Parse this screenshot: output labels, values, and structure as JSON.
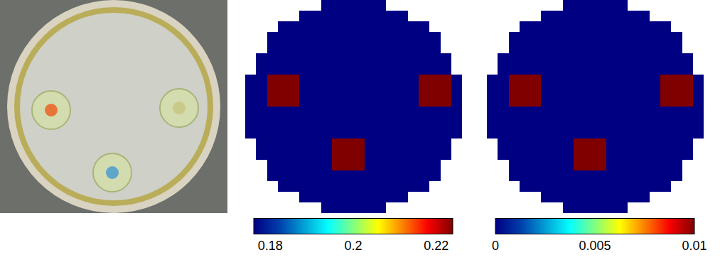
{
  "chart_data": [
    {
      "type": "heatmap",
      "tick_labels": false,
      "colorbar_range": [
        0.176,
        0.224
      ],
      "colorbar_ticks": [
        0.18,
        0.2,
        0.22
      ],
      "cells": [
        [
          null,
          null,
          null,
          null,
          null,
          null,
          null,
          0.176,
          0.176,
          0.176,
          0.176,
          0.176,
          0.176,
          null,
          null,
          null,
          null,
          null,
          null,
          null
        ],
        [
          null,
          null,
          null,
          null,
          null,
          0.176,
          0.176,
          0.176,
          0.176,
          0.176,
          0.176,
          0.176,
          0.176,
          0.176,
          0.176,
          null,
          null,
          null,
          null,
          null
        ],
        [
          null,
          null,
          null,
          0.176,
          0.176,
          0.176,
          0.176,
          0.176,
          0.176,
          0.176,
          0.176,
          0.176,
          0.176,
          0.176,
          0.176,
          0.176,
          0.176,
          null,
          null,
          null
        ],
        [
          null,
          null,
          0.176,
          0.176,
          0.176,
          0.176,
          0.176,
          0.176,
          0.176,
          0.176,
          0.176,
          0.176,
          0.176,
          0.176,
          0.176,
          0.176,
          0.176,
          0.176,
          null,
          null
        ],
        [
          null,
          null,
          0.176,
          0.176,
          0.176,
          0.176,
          0.176,
          0.176,
          0.176,
          0.176,
          0.176,
          0.176,
          0.176,
          0.176,
          0.176,
          0.176,
          0.176,
          0.176,
          null,
          null
        ],
        [
          null,
          0.176,
          0.176,
          0.176,
          0.176,
          0.176,
          0.176,
          0.176,
          0.176,
          0.176,
          0.176,
          0.176,
          0.176,
          0.176,
          0.176,
          0.176,
          0.176,
          0.176,
          0.176,
          null
        ],
        [
          null,
          0.176,
          0.176,
          0.176,
          0.176,
          0.176,
          0.176,
          0.176,
          0.176,
          0.176,
          0.176,
          0.176,
          0.176,
          0.176,
          0.176,
          0.176,
          0.176,
          0.176,
          0.176,
          null
        ],
        [
          0.176,
          0.176,
          0.224,
          0.224,
          0.224,
          0.176,
          0.176,
          0.176,
          0.176,
          0.176,
          0.176,
          0.176,
          0.176,
          0.176,
          0.176,
          0.176,
          0.224,
          0.224,
          0.224,
          0.176
        ],
        [
          0.176,
          0.176,
          0.224,
          0.224,
          0.224,
          0.176,
          0.176,
          0.176,
          0.176,
          0.176,
          0.176,
          0.176,
          0.176,
          0.176,
          0.176,
          0.176,
          0.224,
          0.224,
          0.224,
          0.176
        ],
        [
          0.176,
          0.176,
          0.224,
          0.224,
          0.224,
          0.176,
          0.176,
          0.176,
          0.176,
          0.176,
          0.176,
          0.176,
          0.176,
          0.176,
          0.176,
          0.176,
          0.224,
          0.224,
          0.224,
          0.176
        ],
        [
          0.176,
          0.176,
          0.176,
          0.176,
          0.176,
          0.176,
          0.176,
          0.176,
          0.176,
          0.176,
          0.176,
          0.176,
          0.176,
          0.176,
          0.176,
          0.176,
          0.176,
          0.176,
          0.176,
          0.176
        ],
        [
          0.176,
          0.176,
          0.176,
          0.176,
          0.176,
          0.176,
          0.176,
          0.176,
          0.176,
          0.176,
          0.176,
          0.176,
          0.176,
          0.176,
          0.176,
          0.176,
          0.176,
          0.176,
          0.176,
          0.176
        ],
        [
          0.176,
          0.176,
          0.176,
          0.176,
          0.176,
          0.176,
          0.176,
          0.176,
          0.176,
          0.176,
          0.176,
          0.176,
          0.176,
          0.176,
          0.176,
          0.176,
          0.176,
          0.176,
          0.176,
          0.176
        ],
        [
          null,
          0.176,
          0.176,
          0.176,
          0.176,
          0.176,
          0.176,
          0.176,
          0.224,
          0.224,
          0.224,
          0.176,
          0.176,
          0.176,
          0.176,
          0.176,
          0.176,
          0.176,
          0.176,
          null
        ],
        [
          null,
          0.176,
          0.176,
          0.176,
          0.176,
          0.176,
          0.176,
          0.176,
          0.224,
          0.224,
          0.224,
          0.176,
          0.176,
          0.176,
          0.176,
          0.176,
          0.176,
          0.176,
          0.176,
          null
        ],
        [
          null,
          null,
          0.176,
          0.176,
          0.176,
          0.176,
          0.176,
          0.176,
          0.224,
          0.224,
          0.224,
          0.176,
          0.176,
          0.176,
          0.176,
          0.176,
          0.176,
          0.176,
          null,
          null
        ],
        [
          null,
          null,
          0.176,
          0.176,
          0.176,
          0.176,
          0.176,
          0.176,
          0.176,
          0.176,
          0.176,
          0.176,
          0.176,
          0.176,
          0.176,
          0.176,
          0.176,
          0.176,
          null,
          null
        ],
        [
          null,
          null,
          null,
          0.176,
          0.176,
          0.176,
          0.176,
          0.176,
          0.176,
          0.176,
          0.176,
          0.176,
          0.176,
          0.176,
          0.176,
          0.176,
          0.176,
          null,
          null,
          null
        ],
        [
          null,
          null,
          null,
          null,
          null,
          0.176,
          0.176,
          0.176,
          0.176,
          0.176,
          0.176,
          0.176,
          0.176,
          0.176,
          0.176,
          null,
          null,
          null,
          null,
          null
        ],
        [
          null,
          null,
          null,
          null,
          null,
          null,
          null,
          0.176,
          0.176,
          0.176,
          0.176,
          0.176,
          0.176,
          null,
          null,
          null,
          null,
          null,
          null,
          null
        ]
      ]
    },
    {
      "type": "heatmap",
      "tick_labels": false,
      "colorbar_range": [
        0,
        0.01
      ],
      "colorbar_ticks": [
        0,
        0.005,
        0.01
      ],
      "cells": [
        [
          null,
          null,
          null,
          null,
          null,
          null,
          null,
          0,
          0,
          0,
          0,
          0,
          0,
          null,
          null,
          null,
          null,
          null,
          null,
          null
        ],
        [
          null,
          null,
          null,
          null,
          null,
          0,
          0,
          0,
          0,
          0,
          0,
          0,
          0,
          0,
          0,
          null,
          null,
          null,
          null,
          null
        ],
        [
          null,
          null,
          null,
          0,
          0,
          0,
          0,
          0,
          0,
          0,
          0,
          0,
          0,
          0,
          0,
          0,
          0,
          null,
          null,
          null
        ],
        [
          null,
          null,
          0,
          0,
          0,
          0,
          0,
          0,
          0,
          0,
          0,
          0,
          0,
          0,
          0,
          0,
          0,
          0,
          null,
          null
        ],
        [
          null,
          null,
          0,
          0,
          0,
          0,
          0,
          0,
          0,
          0,
          0,
          0,
          0,
          0,
          0,
          0,
          0,
          0,
          null,
          null
        ],
        [
          null,
          0,
          0,
          0,
          0,
          0,
          0,
          0,
          0,
          0,
          0,
          0,
          0,
          0,
          0,
          0,
          0,
          0,
          0,
          null
        ],
        [
          null,
          0,
          0,
          0,
          0,
          0,
          0,
          0,
          0,
          0,
          0,
          0,
          0,
          0,
          0,
          0,
          0,
          0,
          0,
          null
        ],
        [
          0,
          0,
          0.01,
          0.01,
          0.01,
          0,
          0,
          0,
          0,
          0,
          0,
          0,
          0,
          0,
          0,
          0,
          0.01,
          0.01,
          0.01,
          0
        ],
        [
          0,
          0,
          0.01,
          0.01,
          0.01,
          0,
          0,
          0,
          0,
          0,
          0,
          0,
          0,
          0,
          0,
          0,
          0.01,
          0.01,
          0.01,
          0
        ],
        [
          0,
          0,
          0.01,
          0.01,
          0.01,
          0,
          0,
          0,
          0,
          0,
          0,
          0,
          0,
          0,
          0,
          0,
          0.01,
          0.01,
          0.01,
          0
        ],
        [
          0,
          0,
          0,
          0,
          0,
          0,
          0,
          0,
          0,
          0,
          0,
          0,
          0,
          0,
          0,
          0,
          0,
          0,
          0,
          0
        ],
        [
          0,
          0,
          0,
          0,
          0,
          0,
          0,
          0,
          0,
          0,
          0,
          0,
          0,
          0,
          0,
          0,
          0,
          0,
          0,
          0
        ],
        [
          0,
          0,
          0,
          0,
          0,
          0,
          0,
          0,
          0,
          0,
          0,
          0,
          0,
          0,
          0,
          0,
          0,
          0,
          0,
          0
        ],
        [
          null,
          0,
          0,
          0,
          0,
          0,
          0,
          0,
          0.01,
          0.01,
          0.01,
          0,
          0,
          0,
          0,
          0,
          0,
          0,
          0,
          null
        ],
        [
          null,
          0,
          0,
          0,
          0,
          0,
          0,
          0,
          0.01,
          0.01,
          0.01,
          0,
          0,
          0,
          0,
          0,
          0,
          0,
          0,
          null
        ],
        [
          null,
          null,
          0,
          0,
          0,
          0,
          0,
          0,
          0.01,
          0.01,
          0.01,
          0,
          0,
          0,
          0,
          0,
          0,
          0,
          null,
          null
        ],
        [
          null,
          null,
          0,
          0,
          0,
          0,
          0,
          0,
          0,
          0,
          0,
          0,
          0,
          0,
          0,
          0,
          0,
          0,
          null,
          null
        ],
        [
          null,
          null,
          null,
          0,
          0,
          0,
          0,
          0,
          0,
          0,
          0,
          0,
          0,
          0,
          0,
          0,
          0,
          null,
          null,
          null
        ],
        [
          null,
          null,
          null,
          null,
          null,
          0,
          0,
          0,
          0,
          0,
          0,
          0,
          0,
          0,
          0,
          null,
          null,
          null,
          null,
          null
        ],
        [
          null,
          null,
          null,
          null,
          null,
          null,
          null,
          0,
          0,
          0,
          0,
          0,
          0,
          null,
          null,
          null,
          null,
          null,
          null,
          null
        ]
      ]
    }
  ]
}
